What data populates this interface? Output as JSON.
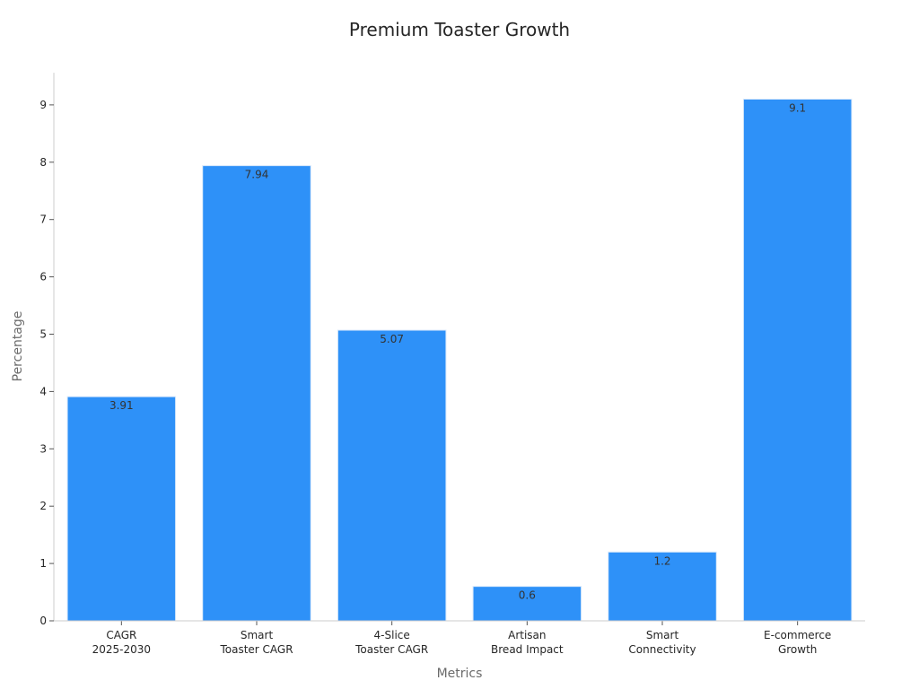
{
  "chart_data": {
    "type": "bar",
    "title": "Premium Toaster Growth",
    "xlabel": "Metrics",
    "ylabel": "Percentage",
    "categories": [
      [
        "CAGR",
        "2025-2030"
      ],
      [
        "Smart",
        "Toaster CAGR"
      ],
      [
        "4-Slice",
        "Toaster CAGR"
      ],
      [
        "Artisan",
        "Bread Impact"
      ],
      [
        "Smart",
        "Connectivity"
      ],
      [
        "E-commerce",
        "Growth"
      ]
    ],
    "values": [
      3.91,
      7.94,
      5.07,
      0.6,
      1.2,
      9.1
    ],
    "data_labels": [
      "3.91",
      "7.94",
      "5.07",
      "0.6",
      "1.2",
      "9.1"
    ],
    "yticks": [
      0,
      1,
      2,
      3,
      4,
      5,
      6,
      7,
      8,
      9
    ],
    "ylim": [
      0,
      9.56
    ],
    "grid": false,
    "bar_color": "#2e91f8",
    "bar_edge_color": "#d9e9fb"
  }
}
